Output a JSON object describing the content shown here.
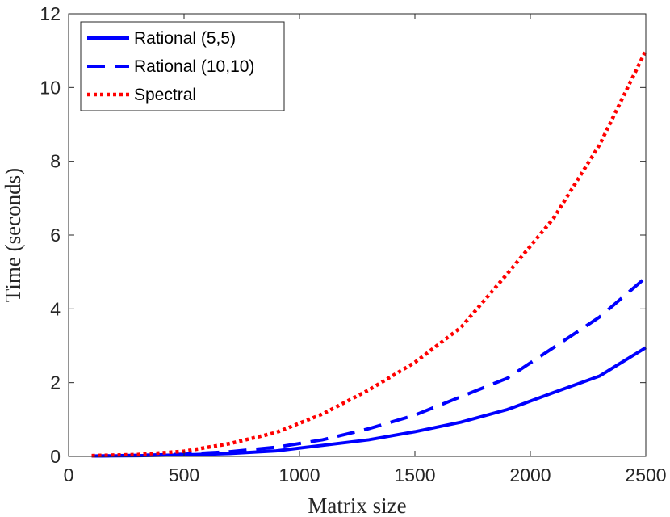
{
  "chart_data": {
    "type": "line",
    "title": "",
    "xlabel": "Matrix size",
    "ylabel": "Time (seconds)",
    "xlim": [
      0,
      2500
    ],
    "ylim": [
      0,
      12
    ],
    "xticks": [
      0,
      500,
      1000,
      1500,
      2000,
      2500
    ],
    "yticks": [
      0,
      2,
      4,
      6,
      8,
      10,
      12
    ],
    "grid": false,
    "legend_position": "top-left",
    "series": [
      {
        "name": "Rational (5,5)",
        "style": "solid",
        "color": "#0000ff",
        "x": [
          100,
          300,
          500,
          700,
          900,
          1100,
          1300,
          1500,
          1700,
          1900,
          2100,
          2300,
          2500
        ],
        "y": [
          0.01,
          0.02,
          0.04,
          0.08,
          0.15,
          0.3,
          0.45,
          0.67,
          0.93,
          1.27,
          1.73,
          2.18,
          2.95
        ]
      },
      {
        "name": "Rational (10,10)",
        "style": "dashed",
        "color": "#0000ff",
        "x": [
          100,
          300,
          500,
          700,
          900,
          1100,
          1300,
          1500,
          1700,
          1900,
          2100,
          2300,
          2500
        ],
        "y": [
          0.01,
          0.03,
          0.06,
          0.13,
          0.25,
          0.45,
          0.75,
          1.12,
          1.62,
          2.12,
          2.95,
          3.78,
          4.85
        ]
      },
      {
        "name": "Spectral",
        "style": "dotted",
        "color": "#ff0000",
        "x": [
          100,
          300,
          500,
          700,
          900,
          1100,
          1300,
          1500,
          1700,
          1900,
          2100,
          2300,
          2500
        ],
        "y": [
          0.02,
          0.05,
          0.14,
          0.35,
          0.65,
          1.15,
          1.8,
          2.55,
          3.5,
          4.95,
          6.45,
          8.45,
          11.0
        ]
      }
    ]
  }
}
